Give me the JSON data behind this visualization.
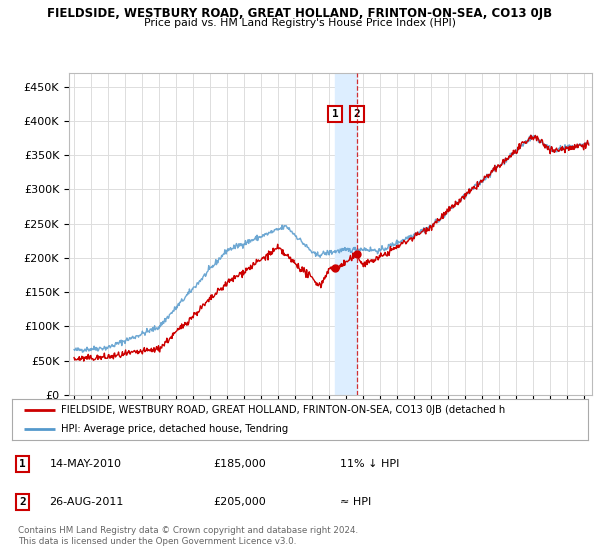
{
  "title": "FIELDSIDE, WESTBURY ROAD, GREAT HOLLAND, FRINTON-ON-SEA, CO13 0JB",
  "subtitle": "Price paid vs. HM Land Registry's House Price Index (HPI)",
  "ylabel_ticks": [
    "£0",
    "£50K",
    "£100K",
    "£150K",
    "£200K",
    "£250K",
    "£300K",
    "£350K",
    "£400K",
    "£450K"
  ],
  "ytick_values": [
    0,
    50000,
    100000,
    150000,
    200000,
    250000,
    300000,
    350000,
    400000,
    450000
  ],
  "xlim_start": 1994.7,
  "xlim_end": 2025.5,
  "ylim": [
    0,
    470000
  ],
  "legend_line1": "FIELDSIDE, WESTBURY ROAD, GREAT HOLLAND, FRINTON-ON-SEA, CO13 0JB (detached h",
  "legend_line2": "HPI: Average price, detached house, Tendring",
  "red_color": "#cc0000",
  "blue_color": "#5599cc",
  "shade_color": "#ddeeff",
  "marker1_date": 2010.37,
  "marker2_date": 2011.65,
  "marker1_price": 185000,
  "marker2_price": 205000,
  "transaction1": "14-MAY-2010",
  "transaction1_price": "£185,000",
  "transaction1_hpi": "11% ↓ HPI",
  "transaction2": "26-AUG-2011",
  "transaction2_price": "£205,000",
  "transaction2_hpi": "≈ HPI",
  "footnote": "Contains HM Land Registry data © Crown copyright and database right 2024.\nThis data is licensed under the Open Government Licence v3.0.",
  "bg_color": "#ffffff",
  "grid_color": "#dddddd"
}
